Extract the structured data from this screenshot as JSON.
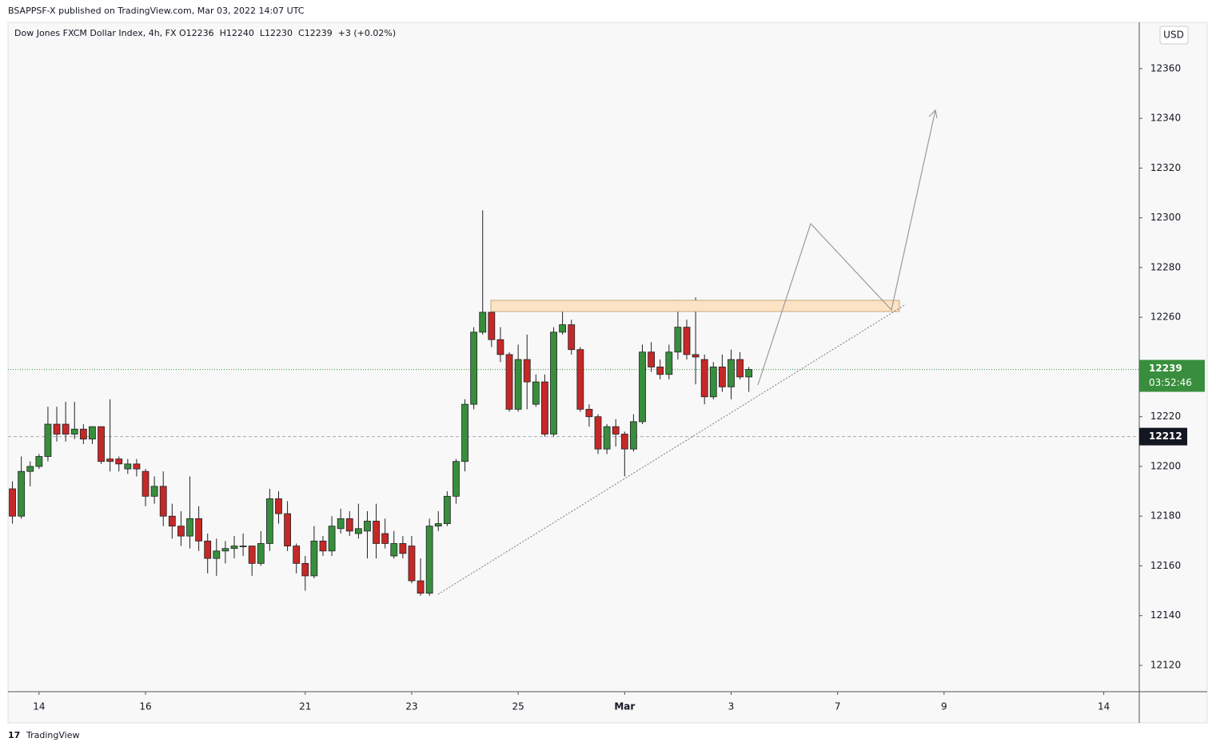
{
  "header": {
    "published": "BSAPPSF-X published on TradingView.com, Mar 03, 2022 14:07 UTC",
    "footer": "TradingView"
  },
  "chart_data": {
    "type": "candlestick",
    "title": "Dow Jones FXCM Dollar Index, 4h, FX",
    "ohlc_text": "O12236  H12240  L12230  C12239  +3 (+0.02%)",
    "currency": "USD",
    "up_color": "#388e3c",
    "down_color": "#c62828",
    "categories": [
      null,
      null,
      null,
      null,
      null,
      null,
      null,
      null,
      null,
      null,
      null,
      null,
      null,
      null,
      null,
      null,
      null,
      null,
      null,
      null,
      null,
      null,
      null,
      null,
      null,
      null,
      null,
      null,
      null,
      null,
      null,
      null,
      null,
      null,
      null,
      null,
      null,
      null,
      null,
      null,
      null,
      null,
      null,
      null,
      null,
      null,
      null,
      null,
      null,
      null,
      null,
      null,
      null,
      null,
      null,
      null,
      null,
      null,
      null,
      null,
      null,
      null,
      null,
      null,
      null,
      null,
      null,
      null,
      null,
      null,
      null,
      null,
      null,
      null,
      null,
      null,
      null,
      null,
      null,
      null,
      null,
      null,
      null,
      null
    ],
    "open": [
      12191,
      12180,
      12198,
      12200,
      12204,
      12217,
      12217,
      12213,
      12215,
      12211,
      12216,
      12203,
      12203,
      12199,
      12201,
      12198,
      12188,
      12192,
      12180,
      12176,
      12172,
      12179,
      12170,
      12163,
      12166,
      12167,
      12168,
      12168,
      12161,
      12169,
      12187,
      12181,
      12168,
      12161,
      12156,
      12170,
      12166,
      12175,
      12179,
      12173,
      12174,
      12178,
      12173,
      12164,
      12169,
      12168,
      12154,
      12149,
      12176,
      12177,
      12188,
      12202,
      12225,
      12254,
      12262,
      12251,
      12245,
      12223,
      12243,
      12225,
      12234,
      12213,
      12254,
      12257,
      12247,
      12223,
      12220,
      12207,
      12216,
      12213,
      12207,
      12218,
      12246,
      12240,
      12237,
      12246,
      12256,
      12245,
      12243,
      12228,
      12240,
      12232,
      12243,
      12236
    ],
    "high": [
      12194,
      12204,
      12202,
      12205,
      12224,
      12224,
      12226,
      12226,
      12217,
      12216,
      12216,
      12227,
      12204,
      12203,
      12203,
      12199,
      12196,
      12198,
      12185,
      12182,
      12196,
      12184,
      12173,
      12171,
      12170,
      12172,
      12173,
      12168,
      12174,
      12191,
      12190,
      12186,
      12169,
      12164,
      12176,
      12172,
      12180,
      12183,
      12182,
      12185,
      12182,
      12185,
      12179,
      12174,
      12172,
      12172,
      12163,
      12179,
      12182,
      12190,
      12203,
      12227,
      12256,
      12303,
      12266,
      12256,
      12246,
      12249,
      12253,
      12237,
      12237,
      12256,
      12266,
      12259,
      12248,
      12225,
      12221,
      12217,
      12219,
      12214,
      12221,
      12249,
      12250,
      12243,
      12249,
      12267,
      12259,
      12268,
      12245,
      12242,
      12245,
      12247,
      12246,
      12240
    ],
    "low": [
      12177,
      12179,
      12192,
      12199,
      12202,
      12210,
      12210,
      12211,
      12209,
      12209,
      12201,
      12198,
      12198,
      12197,
      12196,
      12184,
      12185,
      12176,
      12171,
      12168,
      12167,
      12166,
      12157,
      12156,
      12161,
      12163,
      12164,
      12156,
      12160,
      12166,
      12177,
      12166,
      12157,
      12150,
      12155,
      12164,
      12164,
      12173,
      12172,
      12171,
      12163,
      12163,
      12167,
      12163,
      12163,
      12153,
      12148,
      12148,
      12174,
      12176,
      12185,
      12198,
      12223,
      12253,
      12248,
      12242,
      12222,
      12222,
      12223,
      12224,
      12212,
      12212,
      12253,
      12245,
      12222,
      12216,
      12205,
      12205,
      12208,
      12196,
      12206,
      12217,
      12238,
      12235,
      12235,
      12243,
      12243,
      12233,
      12225,
      12227,
      12230,
      12227,
      12235,
      12230
    ],
    "close": [
      12180,
      12198,
      12200,
      12204,
      12217,
      12213,
      12213,
      12215,
      12211,
      12216,
      12202,
      12202,
      12201,
      12201,
      12199,
      12188,
      12192,
      12180,
      12176,
      12172,
      12179,
      12170,
      12163,
      12166,
      12167,
      12168,
      12168,
      12161,
      12169,
      12187,
      12181,
      12168,
      12161,
      12156,
      12170,
      12166,
      12176,
      12179,
      12174,
      12175,
      12178,
      12169,
      12169,
      12169,
      12165,
      12154,
      12149,
      12176,
      12177,
      12188,
      12202,
      12225,
      12254,
      12262,
      12251,
      12245,
      12223,
      12243,
      12234,
      12234,
      12213,
      12254,
      12257,
      12247,
      12223,
      12220,
      12207,
      12216,
      12213,
      12207,
      12218,
      12246,
      12240,
      12237,
      12246,
      12256,
      12245,
      12244,
      12228,
      12240,
      12232,
      12243,
      12236,
      12239
    ],
    "xlim": [
      -0.5,
      127
    ],
    "xticks": [
      {
        "value": 3,
        "label": "14"
      },
      {
        "value": 15,
        "label": "16"
      },
      {
        "value": 33,
        "label": "21"
      },
      {
        "value": 45,
        "label": "23"
      },
      {
        "value": 57,
        "label": "25"
      },
      {
        "value": 69,
        "label": "Mar"
      },
      {
        "value": 81,
        "label": "3"
      },
      {
        "value": 93,
        "label": "7"
      },
      {
        "value": 105,
        "label": "9"
      },
      {
        "value": 123,
        "label": "14"
      }
    ],
    "ylim": [
      12109.4,
      12378.6
    ],
    "yticks": [
      12120,
      12140,
      12160,
      12180,
      12200,
      12220,
      12240,
      12260,
      12280,
      12300,
      12320,
      12340,
      12360
    ],
    "last_price": {
      "value": 12239,
      "countdown": "03:52:46",
      "color": "#388e3c"
    },
    "marked_price": {
      "value": 12212,
      "color": "#131722"
    }
  }
}
